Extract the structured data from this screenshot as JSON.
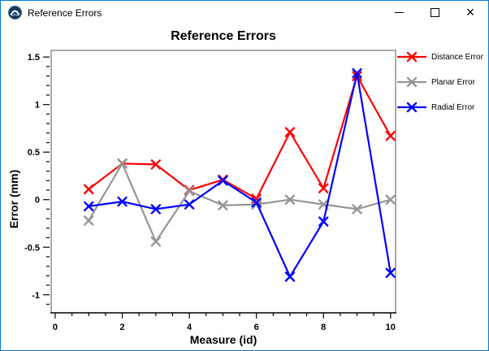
{
  "window": {
    "title": "Reference Errors",
    "icons": {
      "app": "app-logo-icon",
      "minimize": "minimize-icon",
      "maximize": "maximize-icon",
      "close": "close-icon"
    }
  },
  "colors": {
    "window_border": "#0078d7",
    "titlebar_bg": "#ffffff",
    "chart_bg": "#ffffff",
    "plot_frame": "#ababab",
    "axis": "#000000"
  },
  "chart_data": {
    "type": "line",
    "title": "Reference Errors",
    "xlabel": "Measure (id)",
    "ylabel": "Error (mm)",
    "x": [
      1,
      2,
      3,
      4,
      5,
      6,
      7,
      8,
      9,
      10
    ],
    "series": [
      {
        "name": "Distance Error",
        "color": "#ff0000",
        "marker": "x",
        "values": [
          0.11,
          0.38,
          0.37,
          0.1,
          0.21,
          0.01,
          0.71,
          0.12,
          1.3,
          0.67
        ]
      },
      {
        "name": "Planar Error",
        "color": "#969696",
        "marker": "x",
        "values": [
          -0.22,
          0.38,
          -0.44,
          0.09,
          -0.06,
          -0.05,
          0.0,
          -0.05,
          -0.1,
          0.0
        ]
      },
      {
        "name": "Radial Error",
        "color": "#0000ff",
        "marker": "x",
        "values": [
          -0.07,
          -0.02,
          -0.1,
          -0.05,
          0.2,
          -0.03,
          -0.81,
          -0.23,
          1.33,
          -0.77
        ]
      }
    ],
    "xlim": [
      -0.12,
      10.15
    ],
    "ylim": [
      -1.19,
      1.57
    ],
    "x_major_ticks": [
      0,
      2,
      4,
      6,
      8,
      10
    ],
    "x_minor_step": 0.5,
    "y_major_ticks": [
      -1,
      -0.5,
      0,
      0.5,
      1,
      1.5
    ],
    "y_minor_step": 0.1,
    "grid": false,
    "legend_position": "right"
  }
}
